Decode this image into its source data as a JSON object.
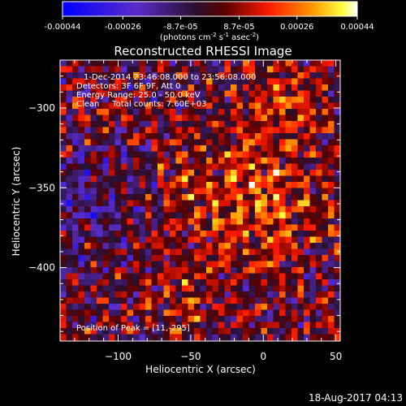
{
  "colorbar": {
    "ticks": [
      "-0.00044",
      "-0.00026",
      "-8.7e-05",
      "8.7e-05",
      "0.00026",
      "0.00044"
    ],
    "units_prefix": "(photons cm",
    "units_exp1": "-2",
    "units_mid": " s",
    "units_exp2": "-1",
    "units_mid2": " asec",
    "units_exp3": "-2",
    "units_suffix": ")"
  },
  "chart_data": {
    "type": "heatmap",
    "title": "Reconstructed RHESSI Image",
    "xlabel": "Heliocentric X (arcsec)",
    "ylabel": "Heliocentric Y (arcsec)",
    "xlim": [
      -140,
      53
    ],
    "ylim": [
      -446,
      -270
    ],
    "xticks": [
      -100,
      -50,
      0,
      50
    ],
    "yticks": [
      -300,
      -350,
      -400
    ],
    "xtick_labels": [
      "−100",
      "−50",
      "0",
      "50"
    ],
    "ytick_labels": [
      "−300",
      "−350",
      "−400"
    ],
    "color_range": [
      -0.00044,
      0.00044
    ],
    "colormap": "blue-purple-black-red-orange-yellow-white",
    "peak": {
      "x": 11,
      "y": -295
    },
    "annotations": [
      "1-Dec-2014 23:46:08.000 to 23:56:08.000",
      "Detectors: 3F 6F 9F, Att 0",
      "Energy Range: 25.0 - 50.0 keV",
      "Clean     Total counts: 7.60E+03"
    ],
    "peak_label": "Position of Peak = [11,-295]"
  },
  "footer": {
    "timestamp": "18-Aug-2017 04:13"
  }
}
